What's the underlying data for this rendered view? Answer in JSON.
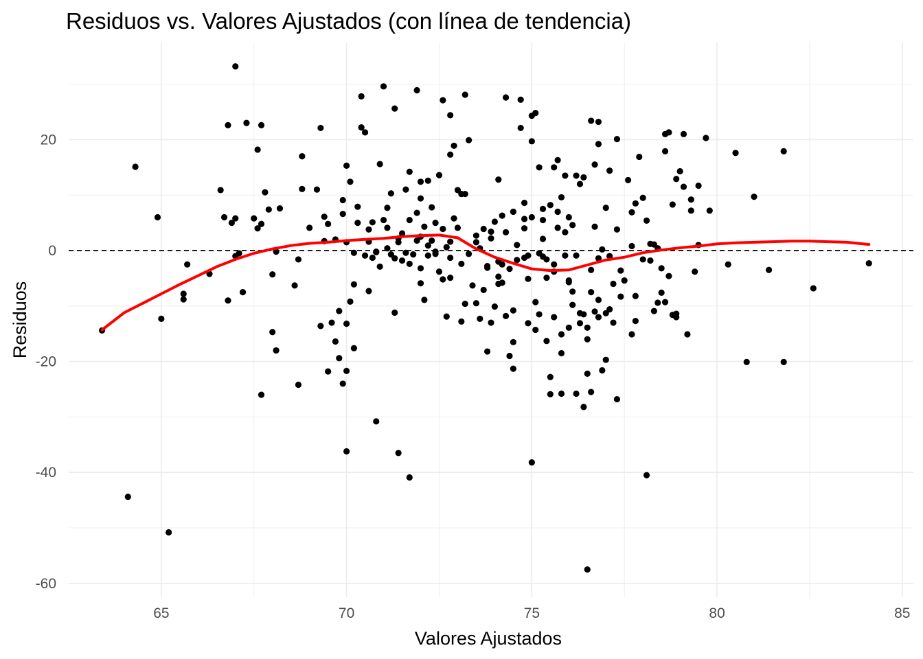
{
  "chart_data": {
    "type": "scatter",
    "title": "Residuos vs. Valores Ajustados (con línea de tendencia)",
    "xlabel": "Valores Ajustados",
    "ylabel": "Residuos",
    "xlim": [
      62.5,
      85.3
    ],
    "ylim": [
      -62.5,
      37.5
    ],
    "x_ticks": [
      {
        "value": 65,
        "label": "65"
      },
      {
        "value": 70,
        "label": "70"
      },
      {
        "value": 75,
        "label": "75"
      },
      {
        "value": 80,
        "label": "80"
      },
      {
        "value": 85,
        "label": "85"
      }
    ],
    "y_ticks": [
      {
        "value": 20,
        "label": "20"
      },
      {
        "value": 0,
        "label": "0"
      },
      {
        "value": -20,
        "label": "-20"
      },
      {
        "value": -40,
        "label": "-40"
      },
      {
        "value": -60,
        "label": "-60"
      }
    ],
    "grid": true,
    "reference_line": {
      "y": 0,
      "style": "dashed",
      "color": "#000000"
    },
    "colors": {
      "points": "#000000",
      "trend": "#ff0000",
      "grid": "#ebebeb"
    },
    "points": [
      [
        63.4,
        -14.4
      ],
      [
        64.1,
        -44.4
      ],
      [
        64.3,
        15.1
      ],
      [
        64.9,
        6.0
      ],
      [
        65.0,
        -12.3
      ],
      [
        65.2,
        -50.8
      ],
      [
        65.6,
        -7.8
      ],
      [
        65.7,
        -2.5
      ],
      [
        65.6,
        -8.8
      ],
      [
        66.3,
        -4.2
      ],
      [
        66.6,
        10.9
      ],
      [
        66.7,
        6.0
      ],
      [
        66.8,
        22.6
      ],
      [
        66.9,
        5.0
      ],
      [
        66.8,
        -9.0
      ],
      [
        67.0,
        5.8
      ],
      [
        67.0,
        33.2
      ],
      [
        67.1,
        -0.5
      ],
      [
        67.2,
        -7.5
      ],
      [
        67.3,
        23.0
      ],
      [
        67.5,
        5.8
      ],
      [
        67.6,
        4.0
      ],
      [
        67.6,
        18.2
      ],
      [
        67.7,
        22.6
      ],
      [
        67.7,
        -26.0
      ],
      [
        67.7,
        4.8
      ],
      [
        67.8,
        10.5
      ],
      [
        67.9,
        7.4
      ],
      [
        68.1,
        -0.2
      ],
      [
        68.0,
        -4.3
      ],
      [
        68.0,
        -14.7
      ],
      [
        68.1,
        -18.0
      ],
      [
        68.2,
        7.6
      ],
      [
        68.6,
        -6.3
      ],
      [
        68.7,
        -24.2
      ],
      [
        68.7,
        -1.6
      ],
      [
        68.8,
        11.1
      ],
      [
        68.8,
        17.0
      ],
      [
        69.0,
        4.1
      ],
      [
        69.2,
        11.0
      ],
      [
        69.3,
        -13.6
      ],
      [
        69.3,
        22.1
      ],
      [
        69.4,
        1.7
      ],
      [
        69.4,
        6.1
      ],
      [
        69.5,
        -21.8
      ],
      [
        69.6,
        -13.0
      ],
      [
        69.7,
        -16.4
      ],
      [
        69.7,
        2.0
      ],
      [
        69.8,
        -19.4
      ],
      [
        69.8,
        -10.9
      ],
      [
        69.9,
        9.1
      ],
      [
        69.9,
        6.6
      ],
      [
        69.9,
        -24.0
      ],
      [
        70.0,
        -13.2
      ],
      [
        70.0,
        15.3
      ],
      [
        70.0,
        1.5
      ],
      [
        70.1,
        12.4
      ],
      [
        70.1,
        -9.2
      ],
      [
        70.2,
        -6.1
      ],
      [
        70.2,
        -0.4
      ],
      [
        70.0,
        -21.7
      ],
      [
        70.0,
        -36.2
      ],
      [
        70.3,
        7.9
      ],
      [
        70.3,
        5.0
      ],
      [
        70.2,
        -17.6
      ],
      [
        70.4,
        22.2
      ],
      [
        70.4,
        27.8
      ],
      [
        70.5,
        21.3
      ],
      [
        70.5,
        -0.9
      ],
      [
        70.6,
        3.8
      ],
      [
        70.6,
        -7.3
      ],
      [
        70.7,
        5.1
      ],
      [
        70.7,
        -1.3
      ],
      [
        70.8,
        -30.8
      ],
      [
        70.8,
        -0.3
      ],
      [
        70.9,
        15.6
      ],
      [
        71.0,
        5.5
      ],
      [
        71.0,
        29.6
      ],
      [
        71.1,
        0.4
      ],
      [
        71.1,
        7.7
      ],
      [
        71.2,
        -0.7
      ],
      [
        71.3,
        -11.2
      ],
      [
        71.3,
        25.6
      ],
      [
        71.4,
        -36.5
      ],
      [
        71.4,
        1.5
      ],
      [
        71.5,
        3.1
      ],
      [
        71.6,
        -0.4
      ],
      [
        71.6,
        11.0
      ],
      [
        71.7,
        14.2
      ],
      [
        71.7,
        -2.4
      ],
      [
        71.7,
        -40.9
      ],
      [
        71.8,
        -0.7
      ],
      [
        71.9,
        28.9
      ],
      [
        71.9,
        6.8
      ],
      [
        72.0,
        12.4
      ],
      [
        72.0,
        2.5
      ],
      [
        72.0,
        9.4
      ],
      [
        72.0,
        -3.2
      ],
      [
        72.1,
        -8.9
      ],
      [
        72.1,
        4.3
      ],
      [
        72.2,
        12.6
      ],
      [
        72.2,
        -0.9
      ],
      [
        72.3,
        1.8
      ],
      [
        72.4,
        -0.6
      ],
      [
        72.4,
        5.0
      ],
      [
        72.5,
        13.6
      ],
      [
        72.6,
        3.9
      ],
      [
        72.6,
        27.1
      ],
      [
        72.7,
        -11.9
      ],
      [
        72.8,
        1.6
      ],
      [
        72.8,
        17.3
      ],
      [
        72.8,
        24.4
      ],
      [
        72.8,
        -4.9
      ],
      [
        72.9,
        18.9
      ],
      [
        73.0,
        10.9
      ],
      [
        73.1,
        -12.8
      ],
      [
        73.1,
        10.2
      ],
      [
        73.2,
        28.1
      ],
      [
        73.2,
        10.2
      ],
      [
        73.3,
        19.9
      ],
      [
        73.5,
        1.5
      ],
      [
        73.6,
        -12.3
      ],
      [
        73.7,
        -7.1
      ],
      [
        73.8,
        -18.2
      ],
      [
        73.8,
        -2.8
      ],
      [
        73.9,
        3.4
      ],
      [
        74.0,
        5.2
      ],
      [
        74.0,
        -10.1
      ],
      [
        74.1,
        12.8
      ],
      [
        74.1,
        -2.0
      ],
      [
        74.2,
        6.3
      ],
      [
        74.3,
        3.3
      ],
      [
        74.3,
        27.6
      ],
      [
        74.3,
        -11.8
      ],
      [
        74.4,
        -19.0
      ],
      [
        74.5,
        -21.3
      ],
      [
        74.5,
        -16.5
      ],
      [
        74.5,
        7.0
      ],
      [
        74.6,
        1.0
      ],
      [
        74.7,
        27.2
      ],
      [
        74.7,
        22.1
      ],
      [
        74.8,
        4.0
      ],
      [
        74.8,
        8.6
      ],
      [
        74.9,
        -13.1
      ],
      [
        74.9,
        -0.9
      ],
      [
        75.0,
        19.7
      ],
      [
        75.0,
        -38.2
      ],
      [
        75.1,
        -14.3
      ],
      [
        75.1,
        -9.3
      ],
      [
        75.2,
        -11.5
      ],
      [
        75.2,
        15.0
      ],
      [
        75.3,
        2.1
      ],
      [
        75.3,
        -1.1
      ],
      [
        75.4,
        -16.3
      ],
      [
        75.4,
        -1.6
      ],
      [
        75.5,
        8.2
      ],
      [
        75.6,
        -12.0
      ],
      [
        75.6,
        15.0
      ],
      [
        75.7,
        7.0
      ],
      [
        75.8,
        -15.1
      ],
      [
        75.8,
        9.6
      ],
      [
        75.9,
        -0.9
      ],
      [
        76.0,
        -5.7
      ],
      [
        76.0,
        -13.9
      ],
      [
        76.1,
        -7.4
      ],
      [
        76.1,
        4.6
      ],
      [
        76.2,
        -25.8
      ],
      [
        76.2,
        -0.9
      ],
      [
        76.3,
        12.0
      ],
      [
        76.3,
        -13.1
      ],
      [
        76.4,
        -11.5
      ],
      [
        76.5,
        -16.0
      ],
      [
        76.5,
        -57.5
      ],
      [
        76.6,
        -7.5
      ],
      [
        76.6,
        -3.5
      ],
      [
        76.7,
        4.3
      ],
      [
        76.8,
        -1.4
      ],
      [
        76.8,
        -12.0
      ],
      [
        76.9,
        0.2
      ],
      [
        77.0,
        7.7
      ],
      [
        77.1,
        14.4
      ],
      [
        77.1,
        -10.6
      ],
      [
        77.2,
        -13.0
      ],
      [
        77.3,
        3.8
      ],
      [
        77.3,
        -26.8
      ],
      [
        77.4,
        -3.6
      ],
      [
        77.4,
        -8.3
      ],
      [
        77.5,
        -5.4
      ],
      [
        77.6,
        12.7
      ],
      [
        77.7,
        -15.1
      ],
      [
        77.7,
        0.8
      ],
      [
        77.8,
        -12.7
      ],
      [
        77.8,
        -8.2
      ],
      [
        77.9,
        16.9
      ],
      [
        78.0,
        -1.6
      ],
      [
        78.1,
        -40.5
      ],
      [
        78.2,
        -1.8
      ],
      [
        78.3,
        1.1
      ],
      [
        78.4,
        0.4
      ],
      [
        78.5,
        -7.6
      ],
      [
        78.6,
        -9.3
      ],
      [
        78.7,
        -4.6
      ],
      [
        78.8,
        -11.6
      ],
      [
        78.9,
        -11.4
      ],
      [
        79.0,
        14.3
      ],
      [
        79.1,
        11.5
      ],
      [
        79.2,
        -15.1
      ],
      [
        79.3,
        7.2
      ],
      [
        79.4,
        -3.8
      ],
      [
        79.5,
        1.0
      ],
      [
        74.8,
        5.7
      ],
      [
        75.0,
        6.0
      ],
      [
        75.0,
        24.3
      ],
      [
        75.1,
        24.8
      ],
      [
        75.3,
        7.5
      ],
      [
        75.3,
        5.5
      ],
      [
        75.4,
        -4.9
      ],
      [
        75.5,
        -22.8
      ],
      [
        75.5,
        -25.9
      ],
      [
        75.6,
        -3.8
      ],
      [
        75.7,
        16.3
      ],
      [
        75.7,
        4.1
      ],
      [
        75.8,
        -18.5
      ],
      [
        75.8,
        -25.8
      ],
      [
        75.9,
        13.5
      ],
      [
        75.9,
        3.3
      ],
      [
        76.0,
        -5.4
      ],
      [
        76.0,
        6.0
      ],
      [
        76.1,
        -9.8
      ],
      [
        76.2,
        13.5
      ],
      [
        76.3,
        -11.3
      ],
      [
        76.4,
        -28.2
      ],
      [
        76.4,
        13.2
      ],
      [
        76.5,
        -13.9
      ],
      [
        76.5,
        -22.2
      ],
      [
        76.6,
        23.4
      ],
      [
        76.6,
        -25.5
      ],
      [
        76.7,
        15.5
      ],
      [
        76.7,
        -11.0
      ],
      [
        76.8,
        19.2
      ],
      [
        76.8,
        23.2
      ],
      [
        76.8,
        -8.9
      ],
      [
        76.9,
        -21.6
      ],
      [
        77.0,
        -19.7
      ],
      [
        77.0,
        -11.3
      ],
      [
        77.1,
        -1.0
      ],
      [
        77.2,
        -6.0
      ],
      [
        77.3,
        20.1
      ],
      [
        77.7,
        6.9
      ],
      [
        77.8,
        8.5
      ],
      [
        78.0,
        9.5
      ],
      [
        78.1,
        5.4
      ],
      [
        78.2,
        1.2
      ],
      [
        78.3,
        -10.9
      ],
      [
        78.4,
        -9.4
      ],
      [
        78.5,
        -3.2
      ],
      [
        78.6,
        17.9
      ],
      [
        78.6,
        21.0
      ],
      [
        78.7,
        21.3
      ],
      [
        78.8,
        8.3
      ],
      [
        78.9,
        12.9
      ],
      [
        78.9,
        -12.0
      ],
      [
        79.1,
        21.0
      ],
      [
        79.3,
        9.2
      ],
      [
        79.5,
        11.7
      ],
      [
        79.7,
        20.3
      ],
      [
        79.8,
        7.2
      ],
      [
        80.3,
        -2.5
      ],
      [
        80.5,
        17.6
      ],
      [
        80.8,
        -20.1
      ],
      [
        81.0,
        9.7
      ],
      [
        81.4,
        -3.5
      ],
      [
        81.8,
        17.9
      ],
      [
        81.8,
        -20.1
      ],
      [
        82.6,
        -6.8
      ],
      [
        84.1,
        -2.3
      ],
      [
        67.0,
        -1.0
      ],
      [
        69.5,
        4.8
      ],
      [
        70.8,
        -0.2
      ],
      [
        71.2,
        10.3
      ],
      [
        71.5,
        -1.8
      ],
      [
        72.3,
        7.8
      ],
      [
        72.6,
        -5.2
      ],
      [
        73.0,
        4.1
      ],
      [
        73.4,
        -6.3
      ],
      [
        73.7,
        3.9
      ],
      [
        73.9,
        -13.0
      ],
      [
        74.2,
        -2.5
      ],
      [
        74.6,
        -1.7
      ],
      [
        74.9,
        -5.1
      ],
      [
        72.4,
        -0.2
      ],
      [
        72.7,
        0.6
      ],
      [
        73.1,
        -2.4
      ],
      [
        73.5,
        2.7
      ],
      [
        73.9,
        2.2
      ],
      [
        74.2,
        -5.8
      ],
      [
        74.5,
        -10.8
      ],
      [
        74.8,
        -1.3
      ],
      [
        75.2,
        -0.5
      ],
      [
        75.6,
        -2.5
      ],
      [
        71.1,
        4.1
      ],
      [
        71.4,
        2.2
      ],
      [
        71.9,
        1.8
      ],
      [
        72.2,
        0.9
      ],
      [
        72.5,
        -3.8
      ],
      [
        72.8,
        -1.3
      ],
      [
        73.3,
        -0.6
      ],
      [
        73.6,
        0.4
      ],
      [
        74.1,
        -4.7
      ],
      [
        74.4,
        -3.3
      ],
      [
        70.6,
        1.6
      ],
      [
        70.9,
        -2.9
      ],
      [
        71.3,
        -1.4
      ],
      [
        71.7,
        5.5
      ],
      [
        72.0,
        -5.9
      ],
      [
        72.9,
        5.8
      ],
      [
        73.2,
        -9.6
      ],
      [
        73.5,
        -9.5
      ],
      [
        73.8,
        -3.1
      ],
      [
        74.1,
        -6.0
      ]
    ],
    "trend": {
      "name": "",
      "x": [
        63.4,
        64.0,
        64.5,
        65.0,
        65.5,
        66.0,
        66.5,
        67.0,
        67.5,
        68.0,
        68.5,
        69.0,
        69.5,
        70.0,
        70.5,
        71.0,
        71.5,
        72.0,
        72.5,
        73.0,
        73.5,
        74.0,
        74.5,
        75.0,
        75.5,
        76.0,
        76.5,
        77.0,
        77.5,
        78.0,
        78.5,
        79.0,
        79.5,
        80.0,
        80.5,
        81.0,
        81.5,
        82.0,
        82.5,
        83.0,
        83.5,
        84.1
      ],
      "y": [
        -14.3,
        -11.2,
        -9.5,
        -7.8,
        -6.1,
        -4.5,
        -2.9,
        -1.6,
        -0.5,
        0.3,
        0.9,
        1.3,
        1.5,
        1.8,
        2.0,
        2.2,
        2.5,
        2.7,
        2.8,
        2.3,
        0.3,
        -1.2,
        -2.3,
        -3.3,
        -3.6,
        -3.5,
        -2.6,
        -1.7,
        -1.2,
        -0.4,
        0.1,
        0.5,
        0.8,
        1.2,
        1.4,
        1.5,
        1.6,
        1.7,
        1.7,
        1.6,
        1.5,
        1.1
      ]
    }
  }
}
